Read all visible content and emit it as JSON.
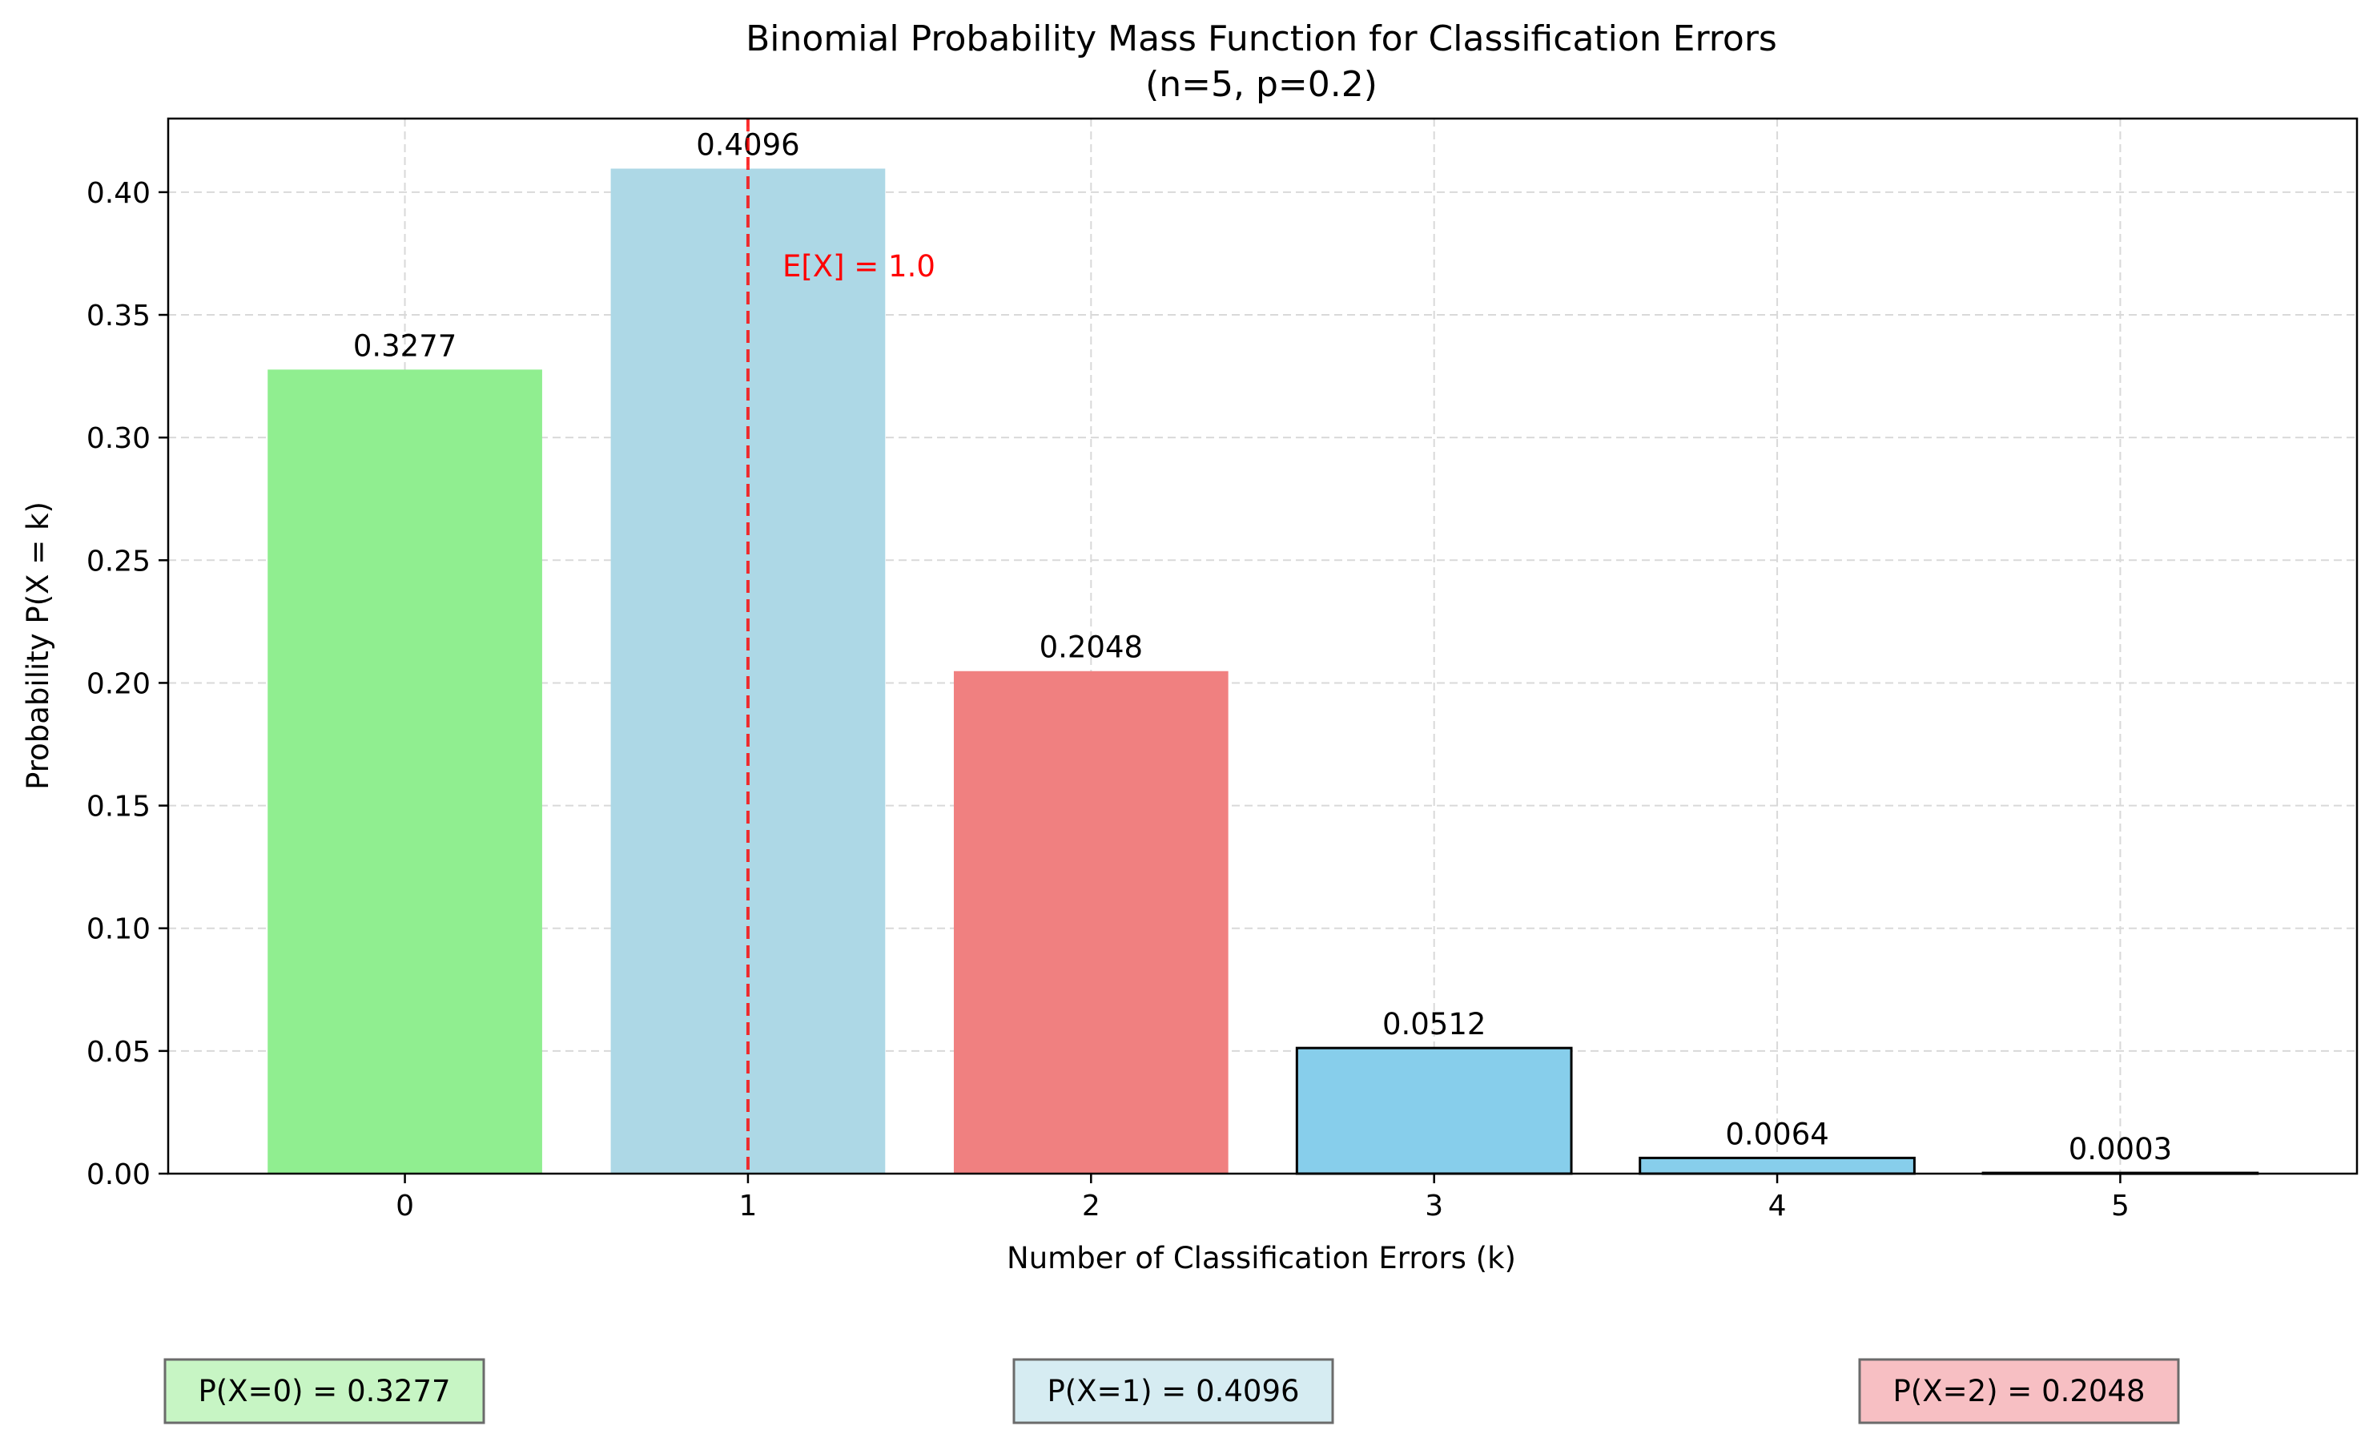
{
  "chart_data": {
    "type": "bar",
    "title": "Binomial Probability Mass Function for Classification Errors",
    "subtitle": "(n=5, p=0.2)",
    "xlabel": "Number of Classification Errors (k)",
    "ylabel": "Probability P(X = k)",
    "categories": [
      "0",
      "1",
      "2",
      "3",
      "4",
      "5"
    ],
    "values": [
      0.3277,
      0.4096,
      0.2048,
      0.0512,
      0.0064,
      0.0003
    ],
    "value_labels": [
      "0.3277",
      "0.4096",
      "0.2048",
      "0.0512",
      "0.0064",
      "0.0003"
    ],
    "bar_colors": [
      "#90ee90",
      "#add8e6",
      "#f08080",
      "#87ceeb",
      "#87ceeb",
      "#87ceeb"
    ],
    "bar_outlined": [
      false,
      false,
      false,
      true,
      true,
      true
    ],
    "ylim": [
      0,
      0.43
    ],
    "yticks": [
      0.0,
      0.05,
      0.1,
      0.15,
      0.2,
      0.25,
      0.3,
      0.35,
      0.4
    ],
    "ytick_labels": [
      "0.00",
      "0.05",
      "0.10",
      "0.15",
      "0.20",
      "0.25",
      "0.30",
      "0.35",
      "0.40"
    ],
    "xlim": [
      -0.69,
      5.69
    ],
    "grid": true,
    "expected_value": {
      "x": 1.0,
      "label": "E[X] = 1.0",
      "label_y": 0.37,
      "color": "#ff0000"
    },
    "prob_boxes": [
      {
        "text": "P(X=0) = 0.3277",
        "fill": "#c7f5c4"
      },
      {
        "text": "P(X=1) = 0.4096",
        "fill": "#d6ecf2"
      },
      {
        "text": "P(X=2) = 0.2048",
        "fill": "#f7bfc3"
      }
    ]
  }
}
